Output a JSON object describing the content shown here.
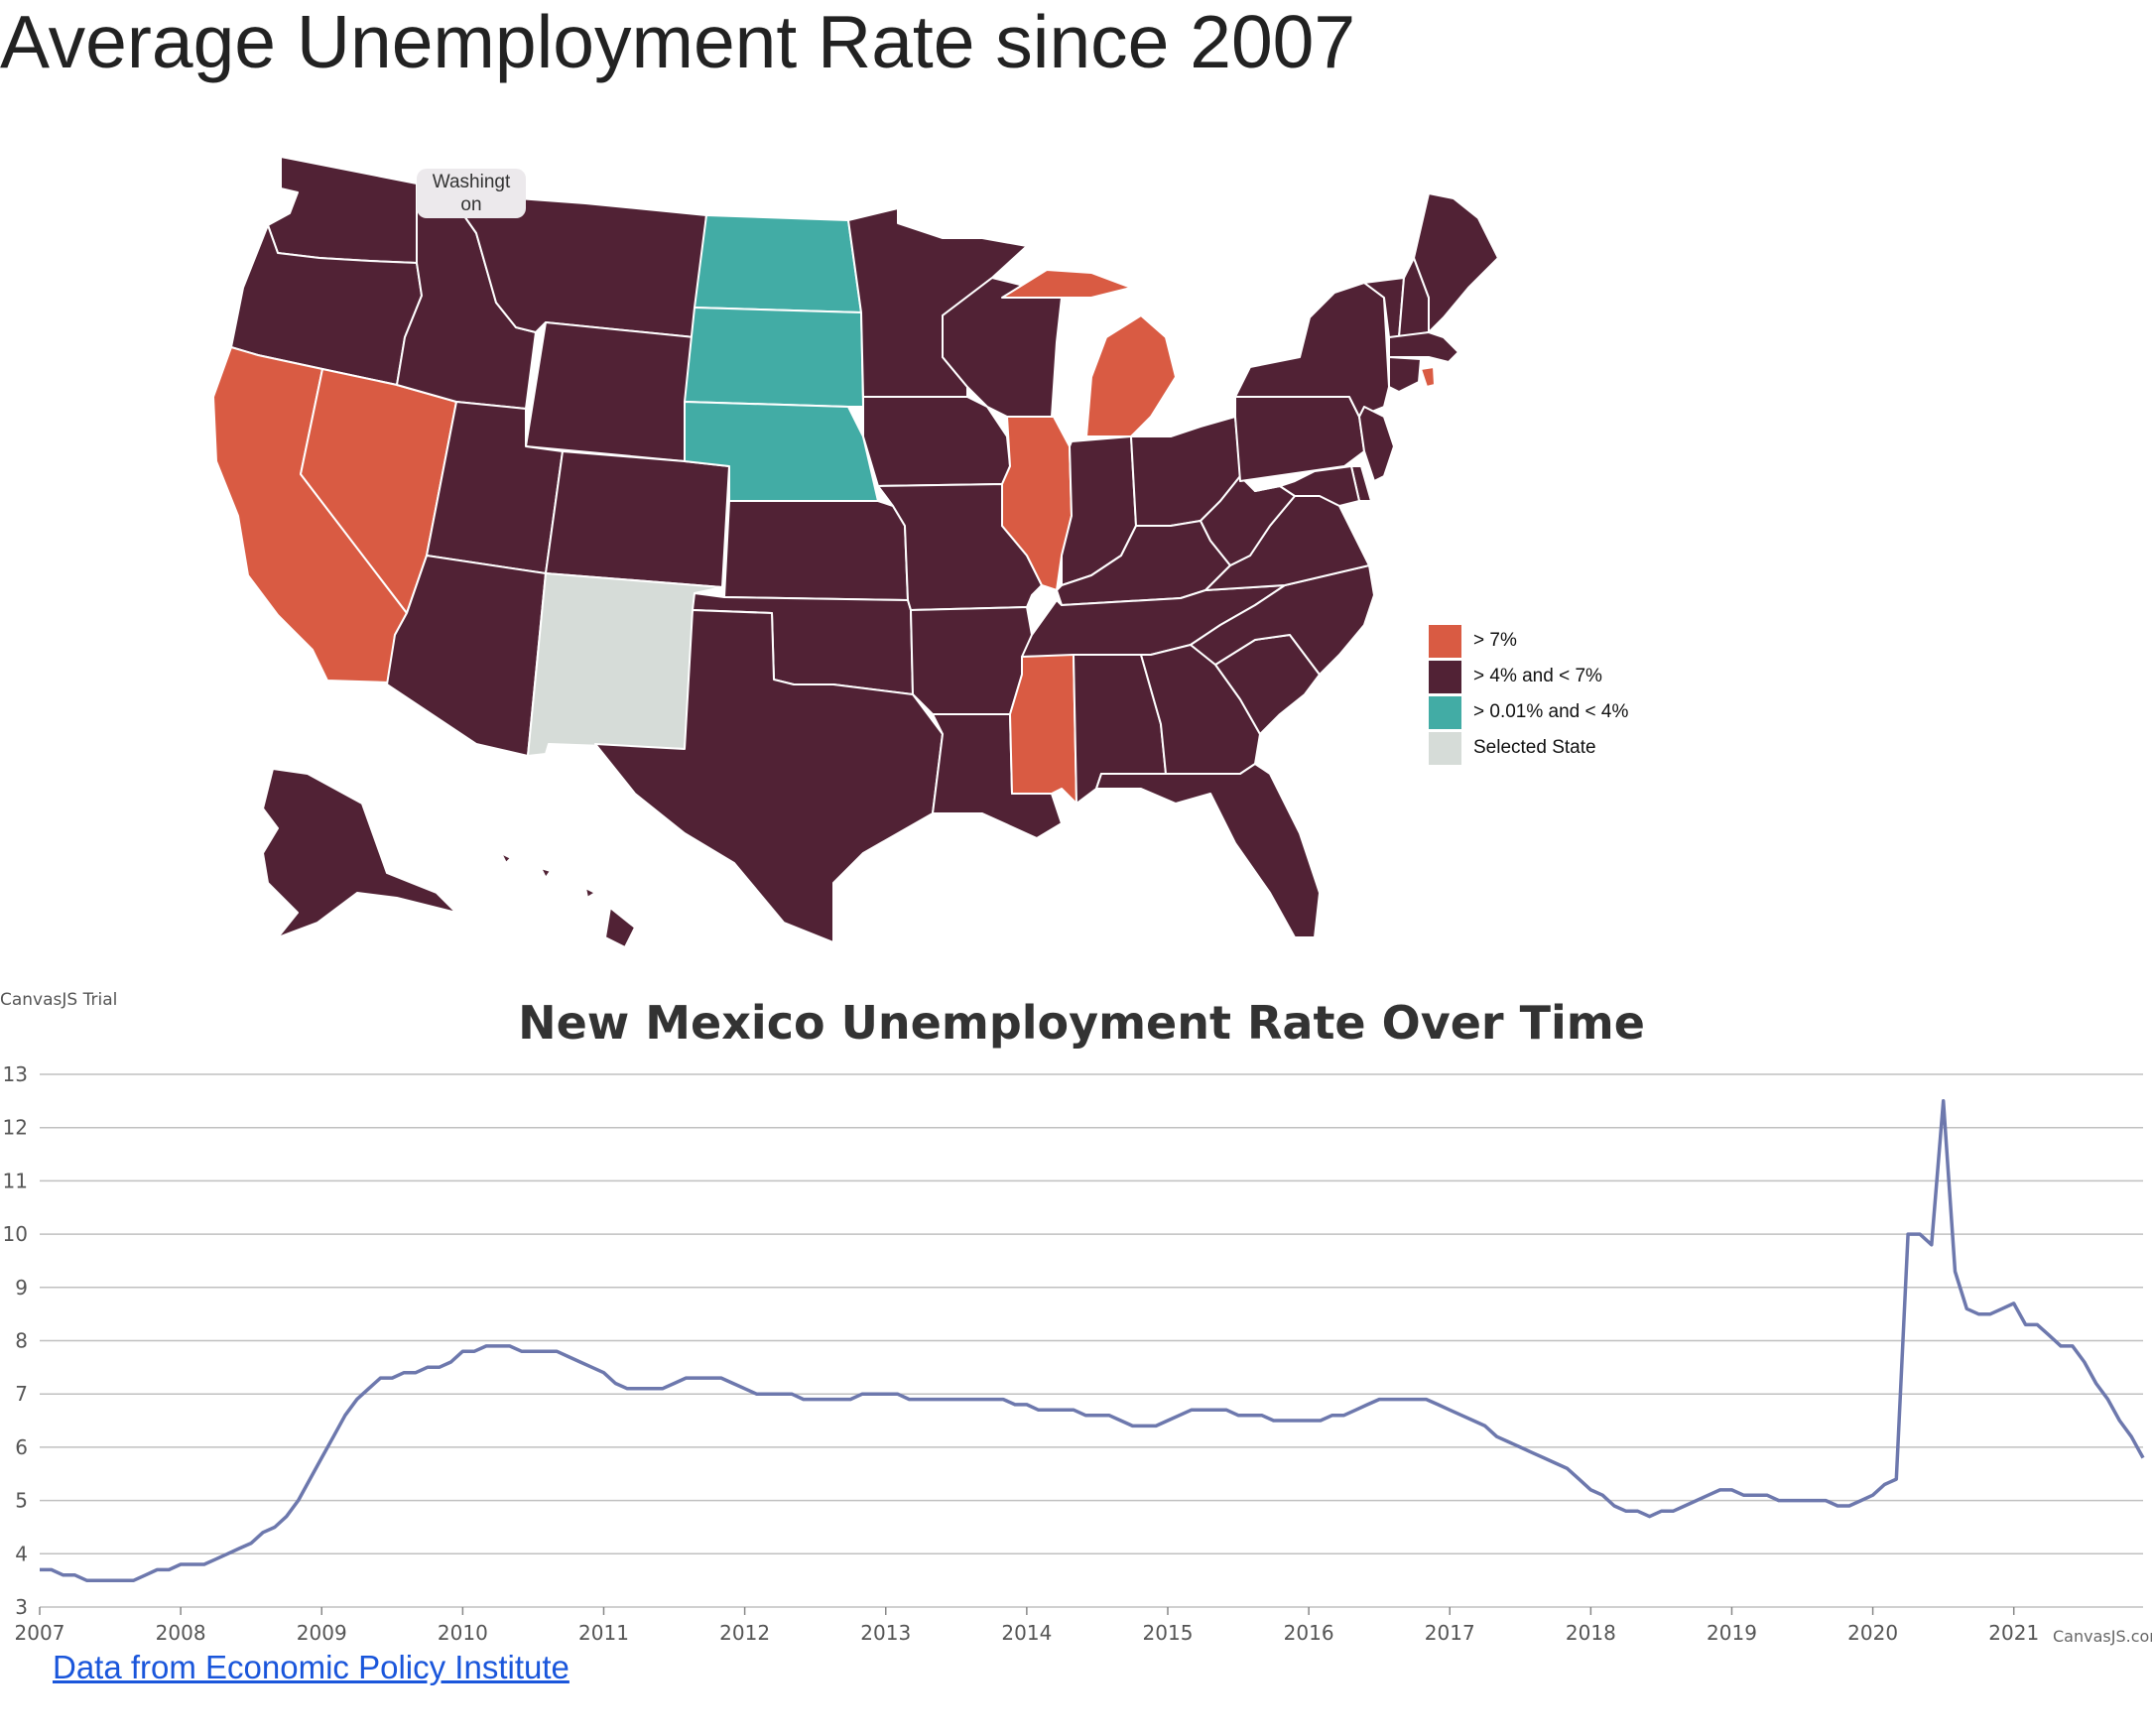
{
  "page": {
    "title": "Average Unemployment Rate since 2007",
    "source_link_label": "Data from Economic Policy Institute"
  },
  "map": {
    "tooltip": {
      "line1": "Washingt",
      "line2": "on"
    },
    "legend": [
      {
        "label": "> 7%",
        "color": "#d95b43"
      },
      {
        "label": "> 4% and < 7%",
        "color": "#512235"
      },
      {
        "label": "> 0.01% and < 4%",
        "color": "#42aca5"
      },
      {
        "label": "Selected State",
        "color": "#d6dcd8"
      }
    ],
    "selected_state": "New Mexico",
    "category_colors": {
      "high": "#d95b43",
      "mid": "#512235",
      "low": "#42aca5",
      "selected": "#d6dcd8"
    },
    "states": {
      "WA": "mid",
      "OR": "mid",
      "CA": "high",
      "NV": "high",
      "ID": "mid",
      "MT": "mid",
      "WY": "mid",
      "UT": "mid",
      "AZ": "mid",
      "CO": "mid",
      "NM": "selected",
      "ND": "low",
      "SD": "low",
      "NE": "low",
      "KS": "mid",
      "OK": "mid",
      "TX": "mid",
      "MN": "mid",
      "IA": "mid",
      "MO": "mid",
      "AR": "mid",
      "LA": "mid",
      "WI": "mid",
      "IL": "high",
      "MI": "high",
      "IN": "mid",
      "OH": "mid",
      "KY": "mid",
      "TN": "mid",
      "MS": "high",
      "AL": "mid",
      "GA": "mid",
      "FL": "mid",
      "SC": "mid",
      "NC": "mid",
      "VA": "mid",
      "WV": "mid",
      "PA": "mid",
      "NY": "mid",
      "VT": "mid",
      "NH": "mid",
      "ME": "mid",
      "MA": "mid",
      "RI": "high",
      "CT": "mid",
      "NJ": "mid",
      "DE": "mid",
      "MD": "mid",
      "AK": "mid",
      "HI": "mid"
    }
  },
  "chart": {
    "trial_label": "CanvasJS Trial",
    "credit_label": "CanvasJS.com",
    "line_color": "#6d78ad",
    "grid_color": "#c0c0c0"
  },
  "chart_data": {
    "type": "line",
    "title": "New Mexico Unemployment Rate Over Time",
    "xlabel": "",
    "ylabel": "",
    "ylim": [
      3,
      13
    ],
    "yticks": [
      3,
      4,
      5,
      6,
      7,
      8,
      9,
      10,
      11,
      12,
      13
    ],
    "xlim": [
      "2007-01",
      "2021-12"
    ],
    "xticks": [
      "2007",
      "2008",
      "2009",
      "2010",
      "2011",
      "2012",
      "2013",
      "2014",
      "2015",
      "2016",
      "2017",
      "2018",
      "2019",
      "2020",
      "2021"
    ],
    "grid": true,
    "series": [
      {
        "values": [
          [
            "2007-01",
            3.7
          ],
          [
            "2007-02",
            3.7
          ],
          [
            "2007-03",
            3.6
          ],
          [
            "2007-04",
            3.6
          ],
          [
            "2007-05",
            3.5
          ],
          [
            "2007-06",
            3.5
          ],
          [
            "2007-07",
            3.5
          ],
          [
            "2007-08",
            3.5
          ],
          [
            "2007-09",
            3.5
          ],
          [
            "2007-10",
            3.6
          ],
          [
            "2007-11",
            3.7
          ],
          [
            "2007-12",
            3.7
          ],
          [
            "2008-01",
            3.8
          ],
          [
            "2008-02",
            3.8
          ],
          [
            "2008-03",
            3.8
          ],
          [
            "2008-04",
            3.9
          ],
          [
            "2008-05",
            4.0
          ],
          [
            "2008-06",
            4.1
          ],
          [
            "2008-07",
            4.2
          ],
          [
            "2008-08",
            4.4
          ],
          [
            "2008-09",
            4.5
          ],
          [
            "2008-10",
            4.7
          ],
          [
            "2008-11",
            5.0
          ],
          [
            "2008-12",
            5.4
          ],
          [
            "2009-01",
            5.8
          ],
          [
            "2009-02",
            6.2
          ],
          [
            "2009-03",
            6.6
          ],
          [
            "2009-04",
            6.9
          ],
          [
            "2009-05",
            7.1
          ],
          [
            "2009-06",
            7.3
          ],
          [
            "2009-07",
            7.3
          ],
          [
            "2009-08",
            7.4
          ],
          [
            "2009-09",
            7.4
          ],
          [
            "2009-10",
            7.5
          ],
          [
            "2009-11",
            7.5
          ],
          [
            "2009-12",
            7.6
          ],
          [
            "2010-01",
            7.8
          ],
          [
            "2010-02",
            7.8
          ],
          [
            "2010-03",
            7.9
          ],
          [
            "2010-04",
            7.9
          ],
          [
            "2010-05",
            7.9
          ],
          [
            "2010-06",
            7.8
          ],
          [
            "2010-07",
            7.8
          ],
          [
            "2010-08",
            7.8
          ],
          [
            "2010-09",
            7.8
          ],
          [
            "2010-10",
            7.7
          ],
          [
            "2010-11",
            7.6
          ],
          [
            "2010-12",
            7.5
          ],
          [
            "2011-01",
            7.4
          ],
          [
            "2011-02",
            7.2
          ],
          [
            "2011-03",
            7.1
          ],
          [
            "2011-04",
            7.1
          ],
          [
            "2011-05",
            7.1
          ],
          [
            "2011-06",
            7.1
          ],
          [
            "2011-07",
            7.2
          ],
          [
            "2011-08",
            7.3
          ],
          [
            "2011-09",
            7.3
          ],
          [
            "2011-10",
            7.3
          ],
          [
            "2011-11",
            7.3
          ],
          [
            "2011-12",
            7.2
          ],
          [
            "2012-01",
            7.1
          ],
          [
            "2012-02",
            7.0
          ],
          [
            "2012-03",
            7.0
          ],
          [
            "2012-04",
            7.0
          ],
          [
            "2012-05",
            7.0
          ],
          [
            "2012-06",
            6.9
          ],
          [
            "2012-07",
            6.9
          ],
          [
            "2012-08",
            6.9
          ],
          [
            "2012-09",
            6.9
          ],
          [
            "2012-10",
            6.9
          ],
          [
            "2012-11",
            7.0
          ],
          [
            "2012-12",
            7.0
          ],
          [
            "2013-01",
            7.0
          ],
          [
            "2013-02",
            7.0
          ],
          [
            "2013-03",
            6.9
          ],
          [
            "2013-04",
            6.9
          ],
          [
            "2013-05",
            6.9
          ],
          [
            "2013-06",
            6.9
          ],
          [
            "2013-07",
            6.9
          ],
          [
            "2013-08",
            6.9
          ],
          [
            "2013-09",
            6.9
          ],
          [
            "2013-10",
            6.9
          ],
          [
            "2013-11",
            6.9
          ],
          [
            "2013-12",
            6.8
          ],
          [
            "2014-01",
            6.8
          ],
          [
            "2014-02",
            6.7
          ],
          [
            "2014-03",
            6.7
          ],
          [
            "2014-04",
            6.7
          ],
          [
            "2014-05",
            6.7
          ],
          [
            "2014-06",
            6.6
          ],
          [
            "2014-07",
            6.6
          ],
          [
            "2014-08",
            6.6
          ],
          [
            "2014-09",
            6.5
          ],
          [
            "2014-10",
            6.4
          ],
          [
            "2014-11",
            6.4
          ],
          [
            "2014-12",
            6.4
          ],
          [
            "2015-01",
            6.5
          ],
          [
            "2015-02",
            6.6
          ],
          [
            "2015-03",
            6.7
          ],
          [
            "2015-04",
            6.7
          ],
          [
            "2015-05",
            6.7
          ],
          [
            "2015-06",
            6.7
          ],
          [
            "2015-07",
            6.6
          ],
          [
            "2015-08",
            6.6
          ],
          [
            "2015-09",
            6.6
          ],
          [
            "2015-10",
            6.5
          ],
          [
            "2015-11",
            6.5
          ],
          [
            "2015-12",
            6.5
          ],
          [
            "2016-01",
            6.5
          ],
          [
            "2016-02",
            6.5
          ],
          [
            "2016-03",
            6.6
          ],
          [
            "2016-04",
            6.6
          ],
          [
            "2016-05",
            6.7
          ],
          [
            "2016-06",
            6.8
          ],
          [
            "2016-07",
            6.9
          ],
          [
            "2016-08",
            6.9
          ],
          [
            "2016-09",
            6.9
          ],
          [
            "2016-10",
            6.9
          ],
          [
            "2016-11",
            6.9
          ],
          [
            "2016-12",
            6.8
          ],
          [
            "2017-01",
            6.7
          ],
          [
            "2017-02",
            6.6
          ],
          [
            "2017-03",
            6.5
          ],
          [
            "2017-04",
            6.4
          ],
          [
            "2017-05",
            6.2
          ],
          [
            "2017-06",
            6.1
          ],
          [
            "2017-07",
            6.0
          ],
          [
            "2017-08",
            5.9
          ],
          [
            "2017-09",
            5.8
          ],
          [
            "2017-10",
            5.7
          ],
          [
            "2017-11",
            5.6
          ],
          [
            "2017-12",
            5.4
          ],
          [
            "2018-01",
            5.2
          ],
          [
            "2018-02",
            5.1
          ],
          [
            "2018-03",
            4.9
          ],
          [
            "2018-04",
            4.8
          ],
          [
            "2018-05",
            4.8
          ],
          [
            "2018-06",
            4.7
          ],
          [
            "2018-07",
            4.8
          ],
          [
            "2018-08",
            4.8
          ],
          [
            "2018-09",
            4.9
          ],
          [
            "2018-10",
            5.0
          ],
          [
            "2018-11",
            5.1
          ],
          [
            "2018-12",
            5.2
          ],
          [
            "2019-01",
            5.2
          ],
          [
            "2019-02",
            5.1
          ],
          [
            "2019-03",
            5.1
          ],
          [
            "2019-04",
            5.1
          ],
          [
            "2019-05",
            5.0
          ],
          [
            "2019-06",
            5.0
          ],
          [
            "2019-07",
            5.0
          ],
          [
            "2019-08",
            5.0
          ],
          [
            "2019-09",
            5.0
          ],
          [
            "2019-10",
            4.9
          ],
          [
            "2019-11",
            4.9
          ],
          [
            "2019-12",
            5.0
          ],
          [
            "2020-01",
            5.1
          ],
          [
            "2020-02",
            5.3
          ],
          [
            "2020-03",
            5.4
          ],
          [
            "2020-04",
            10.0
          ],
          [
            "2020-05",
            10.0
          ],
          [
            "2020-06",
            9.8
          ],
          [
            "2020-07",
            12.5
          ],
          [
            "2020-08",
            9.3
          ],
          [
            "2020-09",
            8.6
          ],
          [
            "2020-10",
            8.5
          ],
          [
            "2020-11",
            8.5
          ],
          [
            "2020-12",
            8.6
          ],
          [
            "2021-01",
            8.7
          ],
          [
            "2021-02",
            8.3
          ],
          [
            "2021-03",
            8.3
          ],
          [
            "2021-04",
            8.1
          ],
          [
            "2021-05",
            7.9
          ],
          [
            "2021-06",
            7.9
          ],
          [
            "2021-07",
            7.6
          ],
          [
            "2021-08",
            7.2
          ],
          [
            "2021-09",
            6.9
          ],
          [
            "2021-10",
            6.5
          ],
          [
            "2021-11",
            6.2
          ],
          [
            "2021-12",
            5.8
          ]
        ]
      }
    ]
  }
}
